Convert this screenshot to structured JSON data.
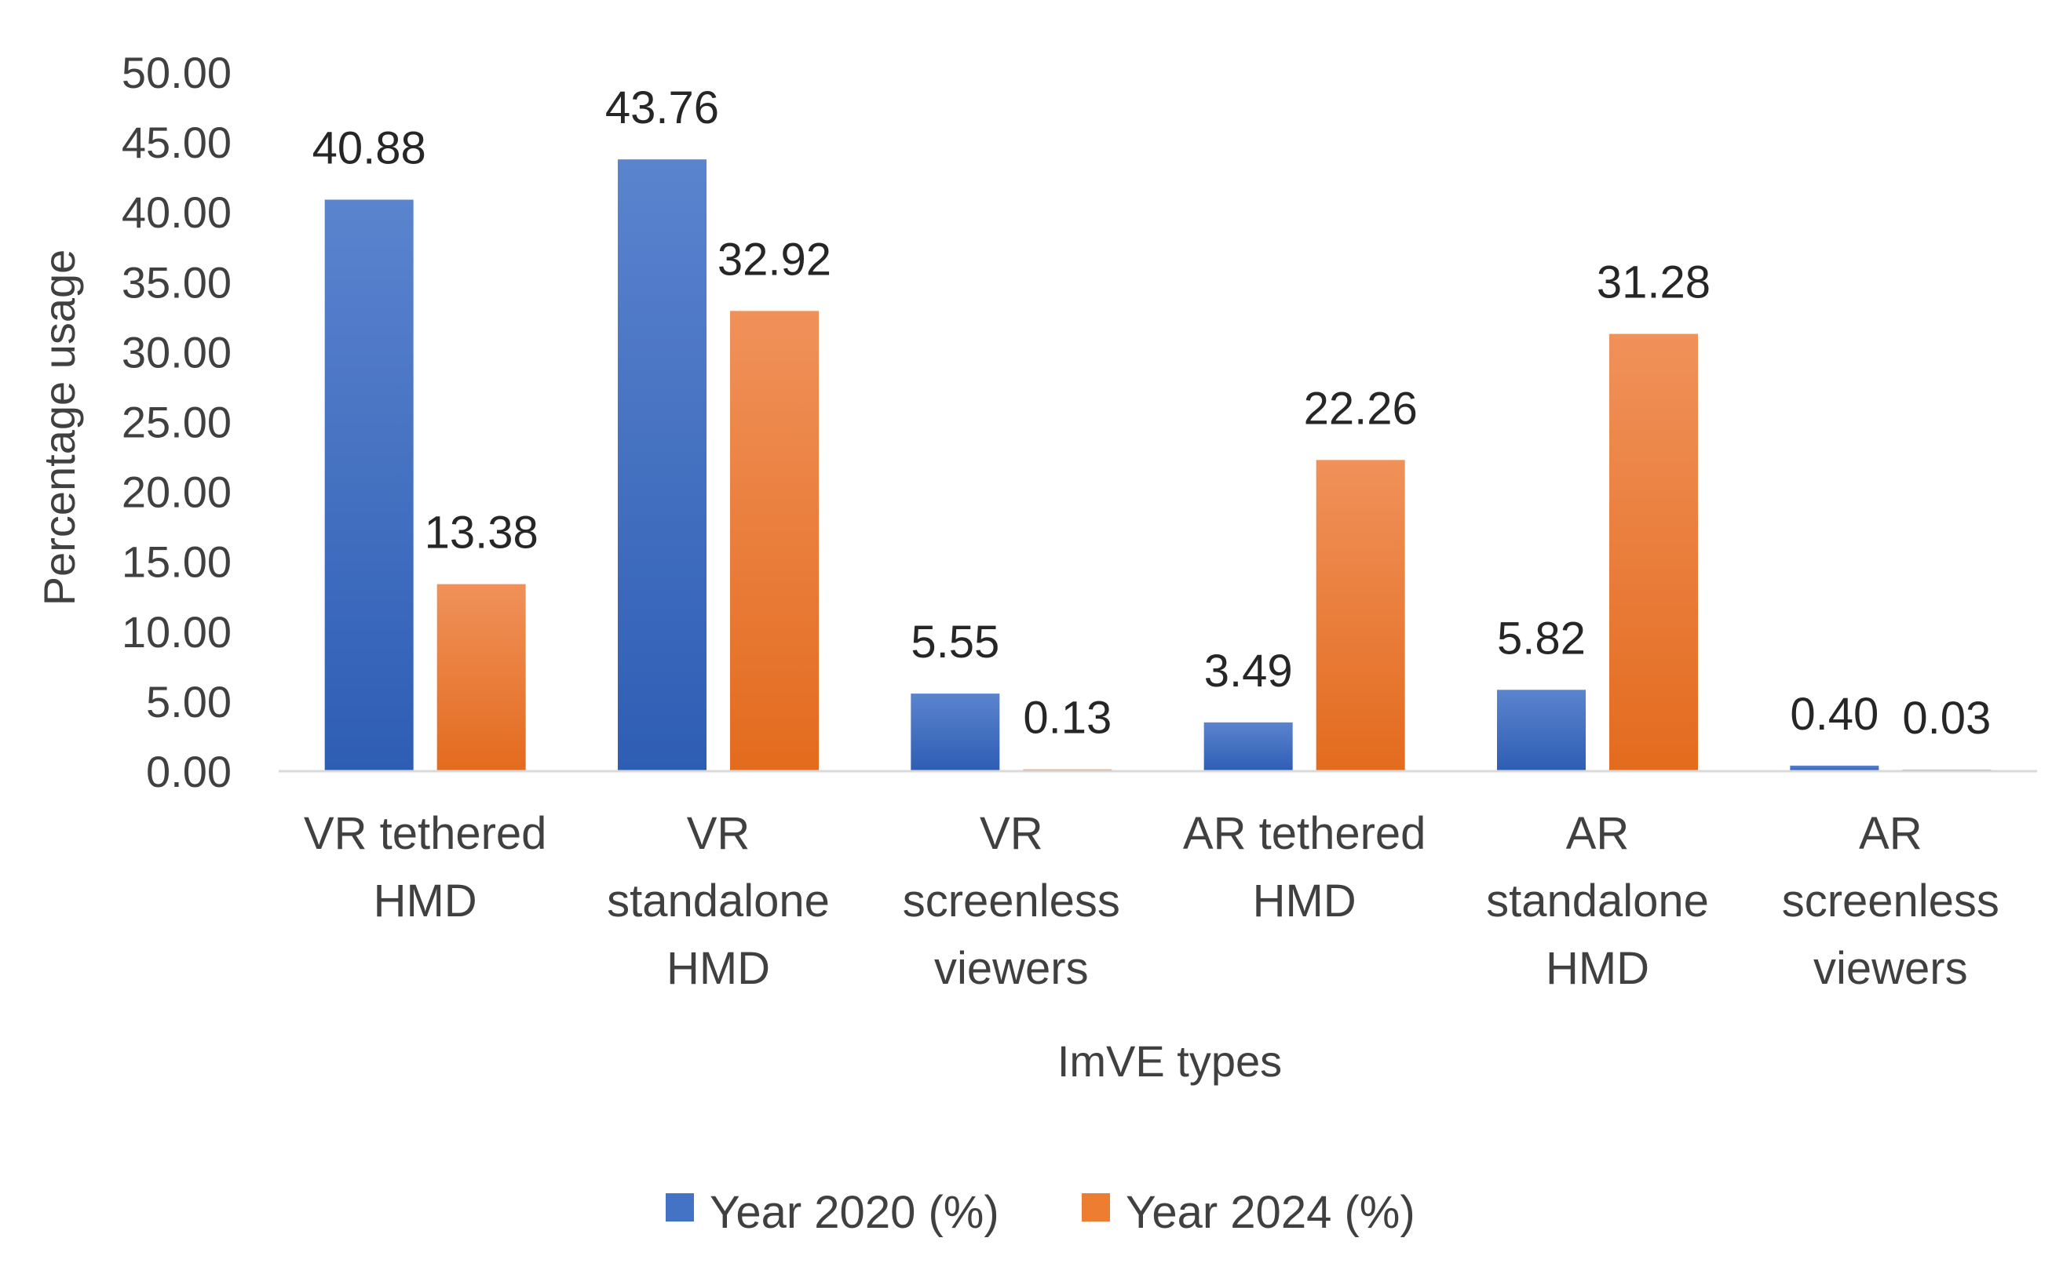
{
  "chart_data": {
    "type": "bar",
    "categories": [
      [
        "VR tethered",
        "HMD"
      ],
      [
        "VR",
        "standalone",
        "HMD"
      ],
      [
        "VR",
        "screenless",
        "viewers"
      ],
      [
        "AR tethered",
        "HMD"
      ],
      [
        "AR",
        "standalone",
        "HMD"
      ],
      [
        "AR",
        "screenless",
        "viewers"
      ]
    ],
    "series": [
      {
        "name": "Year 2020 (%)",
        "values": [
          40.88,
          43.76,
          5.55,
          3.49,
          5.82,
          0.4
        ],
        "labels": [
          "40.88",
          "43.76",
          "5.55",
          "3.49",
          "5.82",
          "0.40"
        ],
        "color": "#4472C4"
      },
      {
        "name": "Year 2024 (%)",
        "values": [
          13.38,
          32.92,
          0.13,
          22.26,
          31.28,
          0.03
        ],
        "labels": [
          "13.38",
          "32.92",
          "0.13",
          "22.26",
          "31.28",
          "0.03"
        ],
        "color": "#ED7D31"
      }
    ],
    "yticks": [
      "0.00",
      "5.00",
      "10.00",
      "15.00",
      "20.00",
      "25.00",
      "30.00",
      "35.00",
      "40.00",
      "45.00",
      "50.00"
    ],
    "ylim": [
      0,
      50
    ],
    "xlabel": "ImVE types",
    "ylabel": "Percentage usage",
    "grid": false,
    "legend_position": "bottom"
  }
}
